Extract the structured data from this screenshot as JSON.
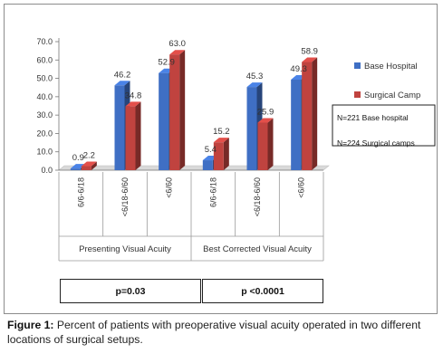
{
  "chart_data": {
    "type": "bar",
    "ylim": [
      0,
      70
    ],
    "yticks": [
      "0.0",
      "10.0",
      "20.0",
      "30.0",
      "40.0",
      "50.0",
      "60.0",
      "70.0"
    ],
    "groups": [
      {
        "label": "Presenting Visual Acuity",
        "categories": [
          "6/6-6/18",
          "<6/18-6/60",
          "<6/60"
        ]
      },
      {
        "label": "Best Corrected Visual Acuity",
        "categories": [
          "6/6-6/18",
          "<6/18-6/60",
          "<6/60"
        ]
      }
    ],
    "series": [
      {
        "name": "Base Hospital",
        "color": "#3f6fc4",
        "values": [
          0.9,
          46.2,
          52.9,
          5.4,
          45.3,
          49.3
        ],
        "labels": [
          "0.9",
          "46.2",
          "52.9",
          "5.4",
          "45.3",
          "49.3"
        ]
      },
      {
        "name": "Surgical Camp",
        "color": "#c0433f",
        "values": [
          2.2,
          34.8,
          63.0,
          15.2,
          25.9,
          58.9
        ],
        "labels": [
          "2.2",
          "34.8",
          "63.0",
          "15.2",
          "25.9",
          "58.9"
        ]
      }
    ],
    "legend_position": "right",
    "notes": [
      "N=221 Base hospital",
      "N=224 Surgical camps"
    ],
    "p_values": [
      "p=0.03",
      "p <0.0001"
    ]
  },
  "caption": {
    "label": "Figure 1:",
    "text": " Percent of patients with preoperative visual acuity operated in two different locations of surgical setups."
  }
}
